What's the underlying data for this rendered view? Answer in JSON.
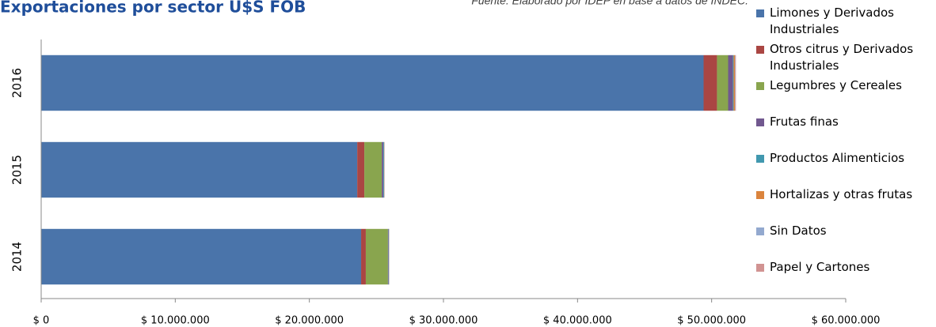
{
  "chart_data": {
    "type": "stacked-bar-horizontal",
    "title": "Exportaciones por sector U$S FOB",
    "subtitle": "Fuente: Elaborado por IDEP en base a datos de INDEC.",
    "categories": [
      "2016",
      "2015",
      "2014"
    ],
    "series": [
      {
        "name": "Limones y Derivados Industriales",
        "color": "#4a74aa",
        "values": [
          49400000,
          23570000,
          23860000
        ]
      },
      {
        "name": "Otros citrus y Derivados Industriales",
        "color": "#aa4643",
        "values": [
          1000000,
          530000,
          350000
        ]
      },
      {
        "name": "Legumbres y Cereales",
        "color": "#89a54e",
        "values": [
          830000,
          1300000,
          1650000
        ]
      },
      {
        "name": "Frutas finas",
        "color": "#71588f",
        "values": [
          350000,
          120000,
          50000
        ]
      },
      {
        "name": "Productos Alimenticios",
        "color": "#4198af",
        "values": [
          60000,
          50000,
          30000
        ]
      },
      {
        "name": "Hortalizas y otras frutas",
        "color": "#db843d",
        "values": [
          100000,
          20000,
          10000
        ]
      },
      {
        "name": "Sin Datos",
        "color": "#93a9cf",
        "values": [
          20000,
          10000,
          5000
        ]
      },
      {
        "name": "Papel y Cartones",
        "color": "#d19392",
        "values": [
          50000,
          10000,
          5000
        ]
      }
    ],
    "xlim": [
      0,
      60000000
    ],
    "xticks": [
      {
        "value": 0,
        "label": "$ 0"
      },
      {
        "value": 10000000,
        "label": "$ 10.000.000"
      },
      {
        "value": 20000000,
        "label": "$ 20.000.000"
      },
      {
        "value": 30000000,
        "label": "$ 30.000.000"
      },
      {
        "value": 40000000,
        "label": "$ 40.000.000"
      },
      {
        "value": 50000000,
        "label": "$ 50.000.000"
      },
      {
        "value": 60000000,
        "label": "$ 60.000.000"
      }
    ],
    "grid": false,
    "legend": "right"
  }
}
